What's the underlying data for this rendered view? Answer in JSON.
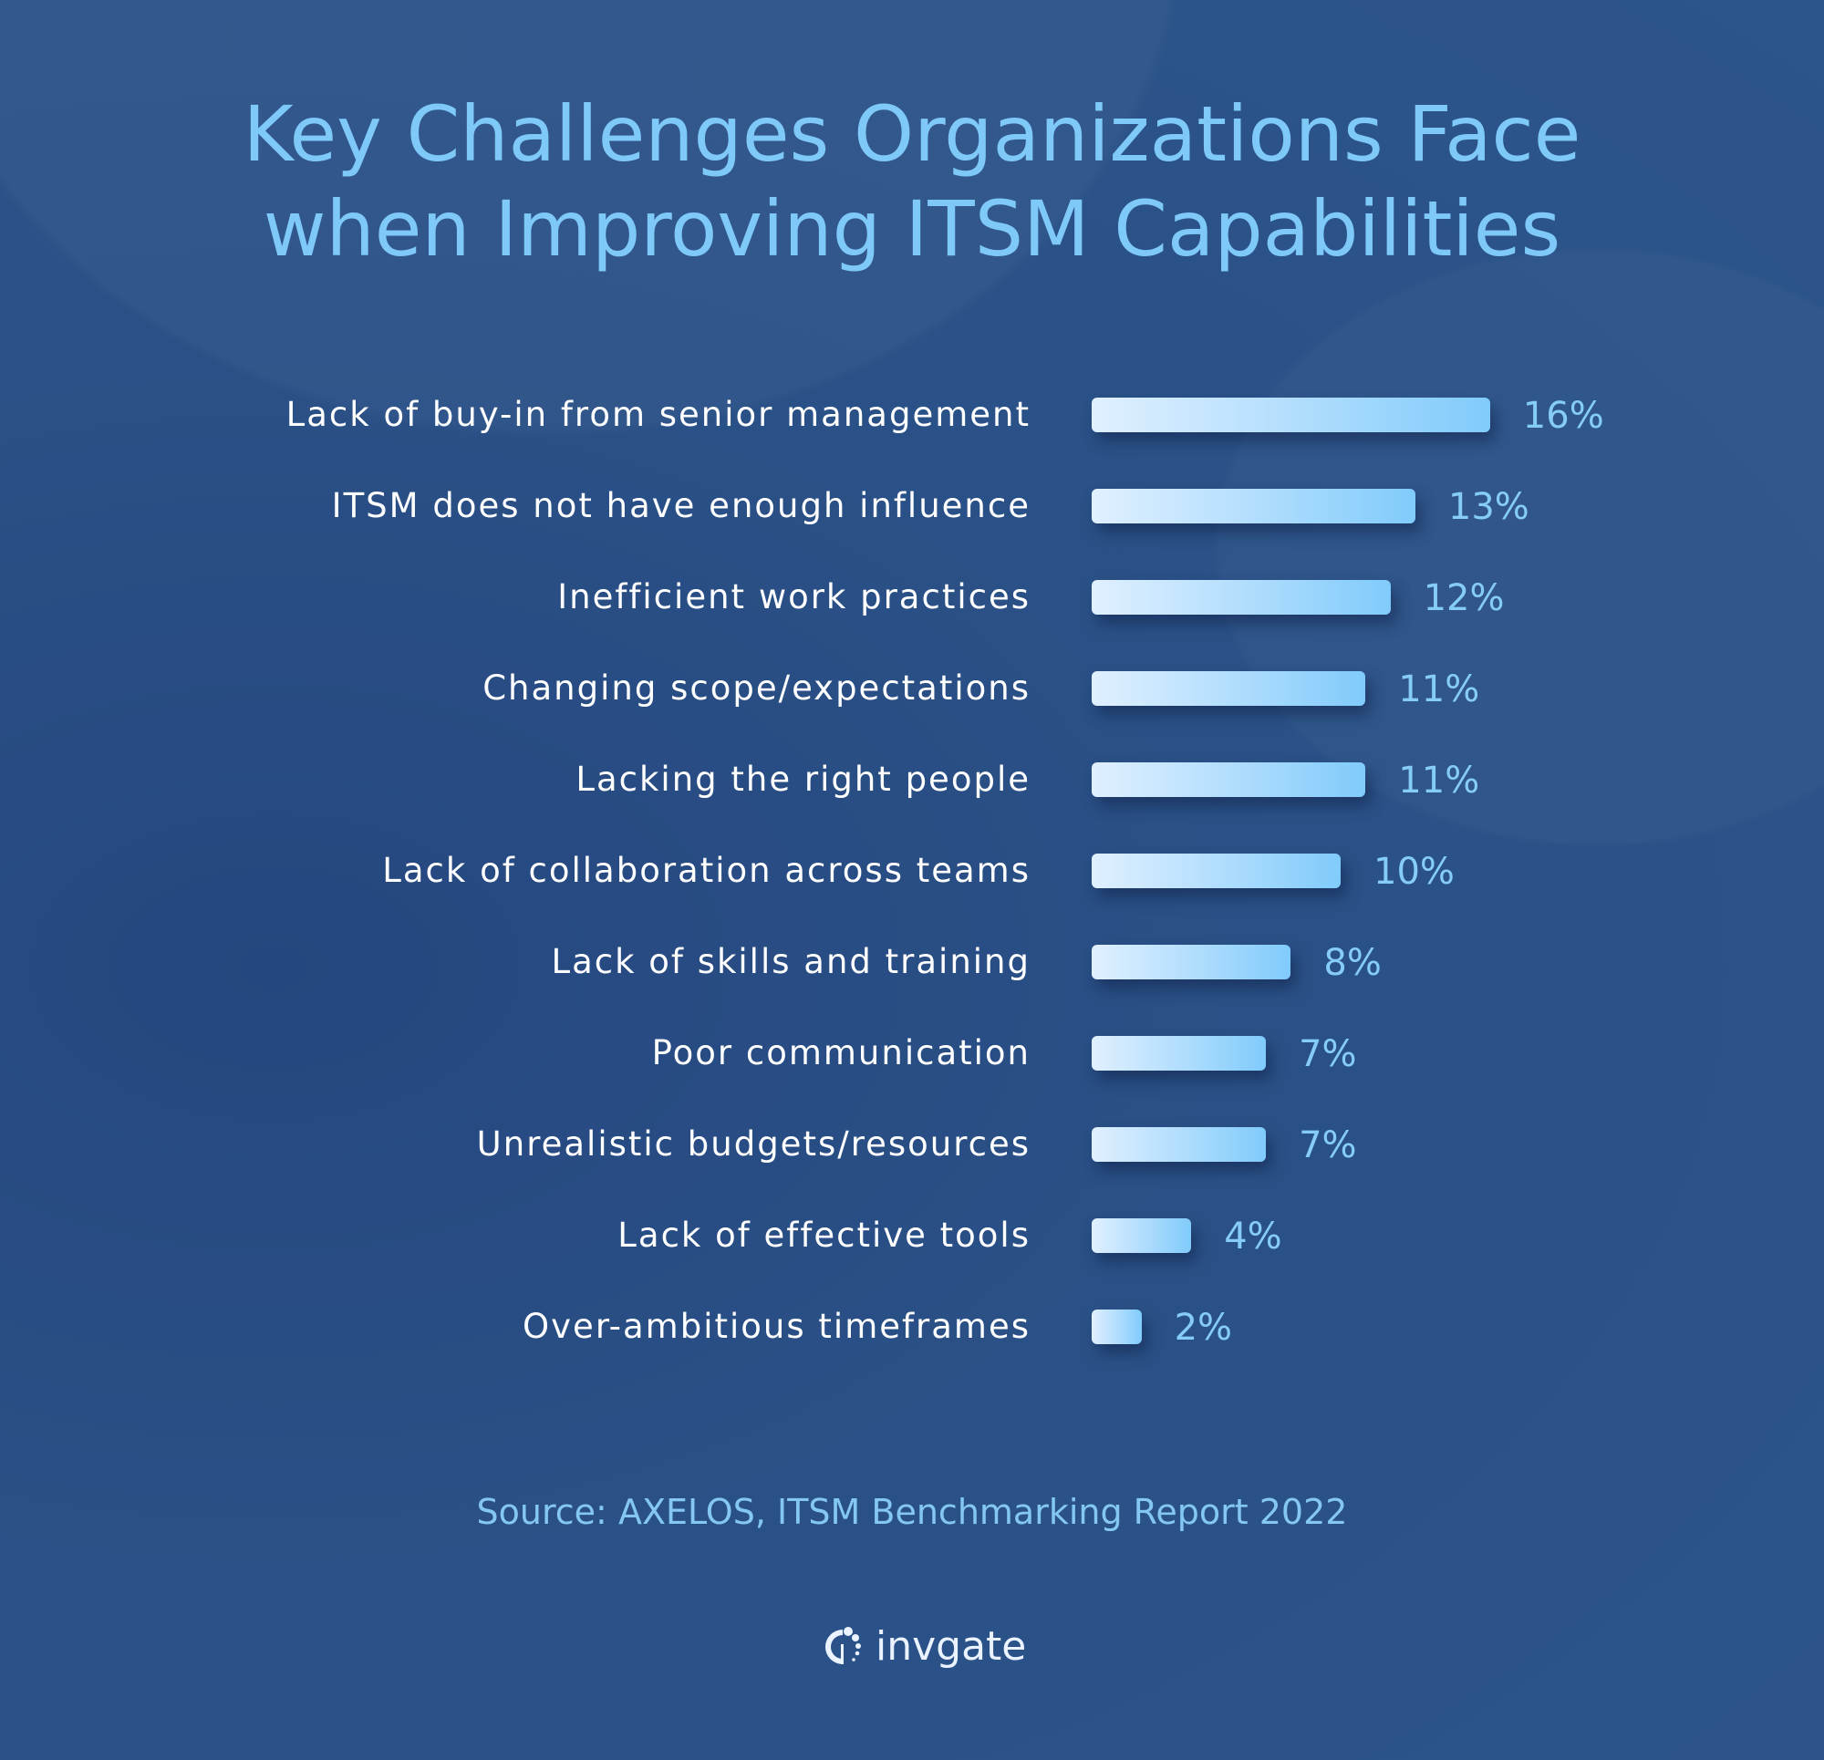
{
  "title_line1": "Key Challenges Organizations Face",
  "title_line2": "when Improving ITSM Capabilities",
  "source": "Source: AXELOS, ITSM Benchmarking Report 2022",
  "logo": "invgate",
  "colors": {
    "background": "#2a5187",
    "title": "#7ec9f7",
    "bar_start": "#e0f0ff",
    "bar_end": "#80cbfb",
    "value_label": "#86ccf8"
  },
  "chart_data": {
    "type": "bar",
    "orientation": "horizontal",
    "title": "Key Challenges Organizations Face when Improving ITSM Capabilities",
    "categories": [
      "Lack of buy-in from senior management",
      "ITSM does not have enough influence",
      "Inefficient work practices",
      "Changing scope/expectations",
      "Lacking the right people",
      "Lack of collaboration across teams",
      "Lack of skills and training",
      "Poor communication",
      "Unrealistic budgets/resources",
      "Lack of effective tools",
      "Over-ambitious timeframes"
    ],
    "values": [
      16,
      13,
      12,
      11,
      11,
      10,
      8,
      7,
      7,
      4,
      2
    ],
    "data_labels": [
      "16%",
      "13%",
      "12%",
      "11%",
      "11%",
      "10%",
      "8%",
      "7%",
      "7%",
      "4%",
      "2%"
    ],
    "unit": "%",
    "grid": false,
    "legend": "none"
  }
}
